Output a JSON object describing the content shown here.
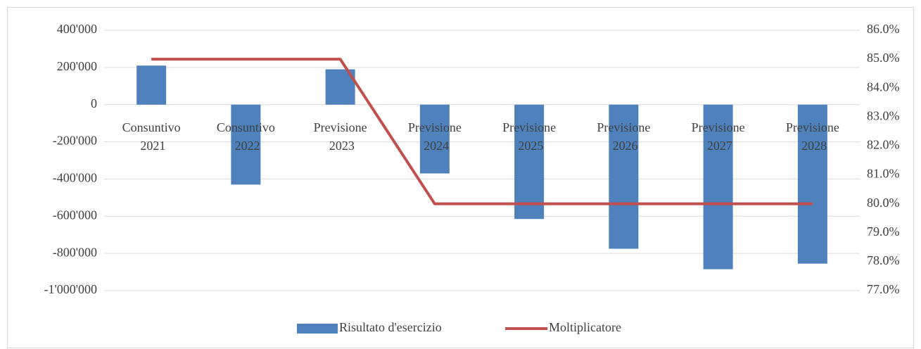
{
  "chart_data": {
    "type": "bar+line",
    "categories": [
      "Consuntivo 2021",
      "Consuntivo 2022",
      "Previsione 2023",
      "Previsione 2024",
      "Previsione 2025",
      "Previsione 2026",
      "Previsione 2027",
      "Previsione 2028"
    ],
    "series": [
      {
        "name": "Risultato d'esercizio",
        "type": "bar",
        "color": "#4f81bd",
        "values": [
          210000,
          -430000,
          190000,
          -370000,
          -615000,
          -775000,
          -885000,
          -855000
        ]
      },
      {
        "name": "Moltiplicatore",
        "type": "line",
        "axis": "y2",
        "color": "#c0504d",
        "values": [
          85,
          85,
          85,
          80,
          80,
          80,
          80,
          80
        ]
      }
    ],
    "ylim": [
      -1000000,
      400000
    ],
    "yticks": [
      {
        "value": 400000,
        "label": "400'000"
      },
      {
        "value": 200000,
        "label": "200'000"
      },
      0,
      {
        "value": -200000,
        "label": "-200'000"
      },
      {
        "value": -400000,
        "label": "-400'000"
      },
      {
        "value": -600000,
        "label": "-600'000"
      },
      {
        "value": -800000,
        "label": "-800'000"
      },
      {
        "value": -1000000,
        "label": "-1'000'000"
      }
    ],
    "y2lim": [
      77,
      86
    ],
    "y2ticks": [
      {
        "value": 86,
        "label": "86.0%"
      },
      {
        "value": 85,
        "label": "85.0%"
      },
      {
        "value": 84,
        "label": "84.0%"
      },
      {
        "value": 83,
        "label": "83.0%"
      },
      {
        "value": 82,
        "label": "82.0%"
      },
      {
        "value": 81,
        "label": "81.0%"
      },
      {
        "value": 80,
        "label": "80.0%"
      },
      {
        "value": 79,
        "label": "79.0%"
      },
      {
        "value": 78,
        "label": "78.0%"
      },
      {
        "value": 77,
        "label": "77.0%"
      }
    ],
    "grid": true,
    "legend": "bottom"
  }
}
